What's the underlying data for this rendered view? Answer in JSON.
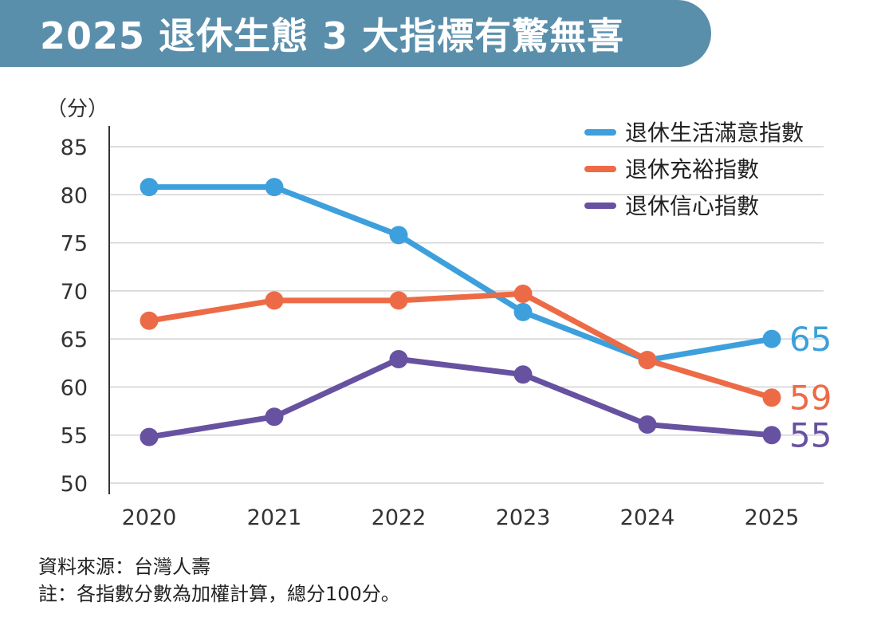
{
  "title": "2025 退休生態 3 大指標有驚無喜",
  "unit": "（分）",
  "source": "資料來源：台灣人壽",
  "note": "註：各指數分數為加權計算，總分100分。",
  "chart_data": {
    "type": "line",
    "categories": [
      "2020",
      "2021",
      "2022",
      "2023",
      "2024",
      "2025"
    ],
    "ylim": [
      50,
      85
    ],
    "yticks": [
      85,
      80,
      75,
      70,
      65,
      60,
      55,
      50
    ],
    "grid": true,
    "legend_position": "top-right",
    "series": [
      {
        "name": "退休生活滿意指數",
        "color": "#3da0dc",
        "values": [
          80.8,
          80.8,
          75.8,
          67.8,
          62.8,
          65
        ],
        "end_label": "65"
      },
      {
        "name": "退休充裕指數",
        "color": "#ec6b46",
        "values": [
          66.9,
          69.0,
          69.0,
          69.7,
          62.8,
          58.9
        ],
        "end_label": "59"
      },
      {
        "name": "退休信心指數",
        "color": "#6652a0",
        "values": [
          54.8,
          56.9,
          62.9,
          61.3,
          56.1,
          55.0
        ],
        "end_label": "55"
      }
    ]
  }
}
